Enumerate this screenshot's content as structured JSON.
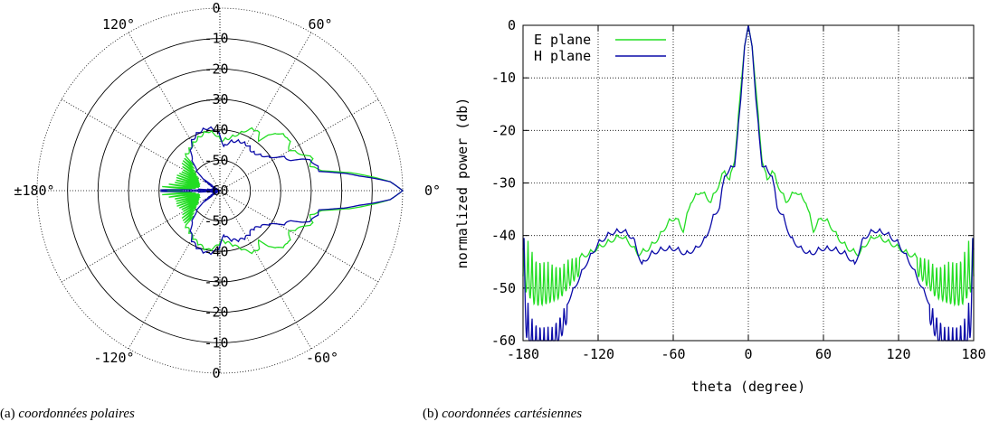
{
  "captions": {
    "a_tag": "(a)",
    "a_text": "coordonnées polaires",
    "b_tag": "(b)",
    "b_text": "coordonnées cartésiennes"
  },
  "chart_data": [
    {
      "type": "line",
      "projection": "polar",
      "radial_ticks": [
        "0",
        "-10",
        "-20",
        "-30",
        "-40",
        "-50",
        "-60"
      ],
      "radial_range": [
        -60,
        0
      ],
      "angle_labels": [
        {
          "angle": 0,
          "label": "0°"
        },
        {
          "angle": 60,
          "label": "60°"
        },
        {
          "angle": 120,
          "label": "120°"
        },
        {
          "angle": 180,
          "label": "±180°"
        },
        {
          "angle": -120,
          "label": "-120°"
        },
        {
          "angle": -60,
          "label": "-60°"
        }
      ],
      "grid": true,
      "series": [
        {
          "color": "#22dd22"
        },
        {
          "color": "#0a0aa8"
        }
      ]
    },
    {
      "type": "line",
      "xlabel": "theta (degree)",
      "ylabel": "normalized power (db)",
      "xlim": [
        -180,
        180
      ],
      "ylim": [
        -60,
        0
      ],
      "xticks": [
        -180,
        -120,
        -60,
        0,
        60,
        120,
        180
      ],
      "yticks": [
        0,
        -10,
        -20,
        -30,
        -40,
        -50,
        -60
      ],
      "grid": true,
      "legend_position": "top-left",
      "series": [
        {
          "name": "E plane",
          "color": "#22dd22",
          "keypoints": [
            [
              -180,
              -40
            ],
            [
              -178,
              -40
            ],
            [
              -170,
              -44
            ],
            [
              -160,
              -45
            ],
            [
              -150,
              -45.5
            ],
            [
              -140,
              -44
            ],
            [
              -128,
              -43
            ],
            [
              -118,
              -41.5
            ],
            [
              -110,
              -40.5
            ],
            [
              -102,
              -39.5
            ],
            [
              -96,
              -40.5
            ],
            [
              -88,
              -43
            ],
            [
              -80,
              -42
            ],
            [
              -72,
              -40
            ],
            [
              -64,
              -37
            ],
            [
              -58,
              -36
            ],
            [
              -52,
              -38.5
            ],
            [
              -46,
              -33
            ],
            [
              -38,
              -31
            ],
            [
              -30,
              -33
            ],
            [
              -24,
              -30
            ],
            [
              -19,
              -27
            ],
            [
              -15,
              -29
            ],
            [
              -11,
              -25
            ],
            [
              -6,
              -12
            ],
            [
              -3,
              -4
            ],
            [
              0,
              0
            ],
            [
              3,
              -4
            ],
            [
              6,
              -12
            ],
            [
              11,
              -25
            ],
            [
              15,
              -29
            ],
            [
              19,
              -27
            ],
            [
              24,
              -30
            ],
            [
              30,
              -33
            ],
            [
              38,
              -31
            ],
            [
              46,
              -33
            ],
            [
              52,
              -38.5
            ],
            [
              58,
              -36
            ],
            [
              64,
              -37
            ],
            [
              72,
              -40
            ],
            [
              80,
              -42
            ],
            [
              88,
              -43
            ],
            [
              96,
              -40.5
            ],
            [
              102,
              -39.5
            ],
            [
              110,
              -40.5
            ],
            [
              118,
              -41.5
            ],
            [
              128,
              -43
            ],
            [
              140,
              -44
            ],
            [
              150,
              -45.5
            ],
            [
              160,
              -45
            ],
            [
              170,
              -44
            ],
            [
              178,
              -40
            ],
            [
              180,
              -40
            ]
          ],
          "ripple_ranges": [
            [
              -180,
              -135
            ],
            [
              135,
              180
            ]
          ]
        },
        {
          "name": "H plane",
          "color": "#0a0aa8",
          "keypoints": [
            [
              -180,
              -36
            ],
            [
              -177,
              -52
            ],
            [
              -172,
              -56
            ],
            [
              -165,
              -57
            ],
            [
              -158,
              -57.5
            ],
            [
              -150,
              -55
            ],
            [
              -140,
              -50
            ],
            [
              -130,
              -45
            ],
            [
              -120,
              -41
            ],
            [
              -110,
              -39
            ],
            [
              -100,
              -38.5
            ],
            [
              -92,
              -40
            ],
            [
              -85,
              -45
            ],
            [
              -78,
              -43
            ],
            [
              -68,
              -42
            ],
            [
              -58,
              -42
            ],
            [
              -50,
              -43
            ],
            [
              -42,
              -42
            ],
            [
              -34,
              -40
            ],
            [
              -28,
              -36
            ],
            [
              -23,
              -34
            ],
            [
              -19,
              -28
            ],
            [
              -15,
              -27
            ],
            [
              -11,
              -26
            ],
            [
              -6,
              -14
            ],
            [
              -3,
              -4
            ],
            [
              0,
              0
            ],
            [
              3,
              -4
            ],
            [
              6,
              -14
            ],
            [
              11,
              -26
            ],
            [
              15,
              -27
            ],
            [
              19,
              -28
            ],
            [
              23,
              -34
            ],
            [
              28,
              -36
            ],
            [
              34,
              -40
            ],
            [
              42,
              -42
            ],
            [
              50,
              -43
            ],
            [
              58,
              -42
            ],
            [
              68,
              -42
            ],
            [
              78,
              -43
            ],
            [
              85,
              -45
            ],
            [
              92,
              -40
            ],
            [
              100,
              -38.5
            ],
            [
              110,
              -39
            ],
            [
              120,
              -41
            ],
            [
              130,
              -45
            ],
            [
              140,
              -50
            ],
            [
              150,
              -55
            ],
            [
              158,
              -57.5
            ],
            [
              165,
              -57
            ],
            [
              172,
              -56
            ],
            [
              177,
              -52
            ],
            [
              180,
              -36
            ]
          ],
          "ripple_ranges": [
            [
              -180,
              -145
            ],
            [
              145,
              180
            ]
          ]
        }
      ]
    }
  ]
}
